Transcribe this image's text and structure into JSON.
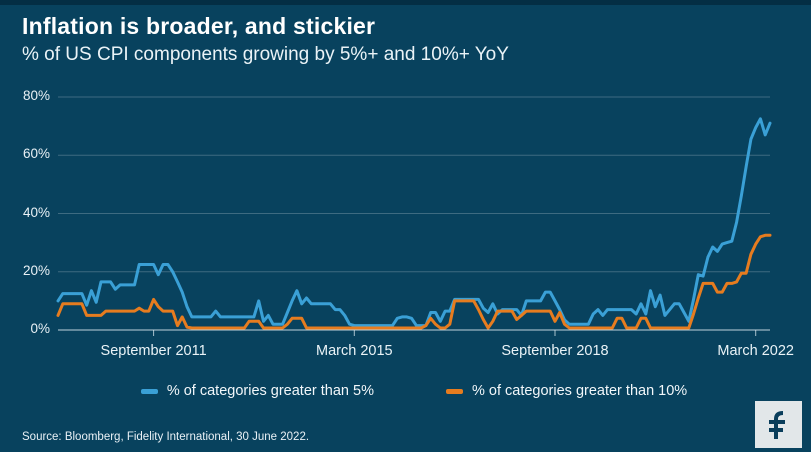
{
  "header": {
    "title": "Inflation is broader, and stickier",
    "subtitle": "% of US CPI components growing by 5%+ and 10%+ YoY"
  },
  "footer": {
    "source": "Source: Bloomberg, Fidelity International, 30 June 2022.",
    "logo": "fidelity-f-logo"
  },
  "colors": {
    "background": "#08425e",
    "series_5pct": "#3aa0d6",
    "series_10pct": "#e67c1f",
    "gridline": "rgba(255,255,255,0.22)",
    "text": "#ffffff",
    "logo_background": "#e2e7e9",
    "logo_glyph": "#0a3e5b"
  },
  "chart_data": {
    "type": "line",
    "title": "Inflation is broader, and stickier",
    "subtitle": "% of US CPI components growing by 5%+ and 10%+ YoY",
    "x_unit": "month",
    "x_start": "2010-01",
    "x_end": "2022-06",
    "ylim": [
      0,
      80
    ],
    "yticks": [
      0,
      20,
      40,
      60,
      80
    ],
    "ytick_labels": [
      "0%",
      "20%",
      "40%",
      "60%",
      "80%"
    ],
    "grid": "horizontal",
    "legend_position": "bottom",
    "xticks": [
      {
        "label": "September 2011",
        "index": 20
      },
      {
        "label": "March 2015",
        "index": 62
      },
      {
        "label": "September 2018",
        "index": 104
      },
      {
        "label": "March 2022",
        "index": 146
      }
    ],
    "series": [
      {
        "name": "% of categories greater than 5%",
        "color": "#3aa0d6",
        "values": [
          10,
          12.5,
          12.5,
          12.5,
          12.5,
          12.5,
          8.5,
          13.5,
          9.5,
          16.5,
          16.5,
          16.5,
          14,
          15.5,
          15.5,
          15.5,
          15.5,
          22.5,
          22.5,
          22.5,
          22.5,
          19,
          22.5,
          22.5,
          20,
          16.5,
          13,
          8,
          4.5,
          4.5,
          4.5,
          4.5,
          4.5,
          6.5,
          4.5,
          4.5,
          4.5,
          4.5,
          4.5,
          4.5,
          4.5,
          4.5,
          10,
          3,
          5,
          2,
          2,
          2,
          6,
          10,
          13.5,
          9,
          11,
          9,
          9,
          9,
          9,
          9,
          7,
          7,
          5,
          2,
          1.5,
          1.5,
          1.5,
          1.5,
          1.5,
          1.5,
          1.5,
          1.5,
          1.5,
          4,
          4.5,
          4.5,
          4,
          1.5,
          1.5,
          1.5,
          6,
          6,
          3,
          6.5,
          6.5,
          10.5,
          10.5,
          10.5,
          10.5,
          10.5,
          10.5,
          7.5,
          6,
          9,
          5.5,
          7,
          7,
          7,
          7,
          5,
          10,
          10,
          10,
          10,
          13,
          13,
          10,
          7,
          3.5,
          2,
          2,
          2,
          2,
          2,
          5.5,
          7,
          5,
          7,
          7,
          7,
          7,
          7,
          7,
          5.5,
          9,
          5.5,
          13.5,
          8,
          12,
          5,
          7,
          9,
          9,
          6,
          3,
          10.5,
          19,
          18.5,
          25,
          28.5,
          27,
          29.5,
          30,
          30.5,
          37,
          46,
          56,
          65.5,
          69.5,
          72.5,
          67,
          71
        ]
      },
      {
        "name": "% of categories greater than 10%",
        "color": "#e67c1f",
        "values": [
          5,
          9,
          9,
          9,
          9,
          9,
          5,
          5,
          5,
          5,
          6.5,
          6.5,
          6.5,
          6.5,
          6.5,
          6.5,
          6.5,
          7.5,
          6.5,
          6.5,
          10.5,
          8,
          6.5,
          6.5,
          6.5,
          1.5,
          4.5,
          1,
          0.7,
          0.7,
          0.7,
          0.7,
          0.7,
          0.7,
          0.7,
          0.7,
          0.7,
          0.7,
          0.7,
          0.7,
          3,
          3,
          3,
          0.7,
          0.7,
          0.7,
          0.7,
          0.7,
          2,
          4,
          4,
          4,
          0.7,
          0.7,
          0.7,
          0.7,
          0.7,
          0.7,
          0.7,
          0.7,
          0.7,
          0.7,
          0.7,
          0.7,
          0.7,
          0.7,
          0.7,
          0.7,
          0.7,
          0.7,
          0.7,
          0.7,
          0.7,
          0.7,
          0.7,
          0.7,
          0.7,
          1.5,
          4,
          2,
          0.7,
          0.7,
          2,
          10,
          10,
          10,
          10,
          10,
          7,
          3.6,
          0.7,
          3,
          6.5,
          6.5,
          6.5,
          6.5,
          3.6,
          5,
          6.5,
          6.5,
          6.5,
          6.5,
          6.5,
          6.5,
          3,
          6,
          2,
          0.7,
          0.7,
          0.7,
          0.7,
          0.7,
          0.7,
          0.7,
          0.7,
          0.7,
          0.7,
          4,
          4,
          0.7,
          0.7,
          0.7,
          4,
          4,
          0.7,
          0.7,
          0.7,
          0.7,
          0.7,
          0.7,
          0.7,
          0.7,
          0.7,
          5.5,
          11,
          16,
          16,
          16,
          13,
          13,
          16,
          16,
          16.5,
          19.5,
          19.5,
          26,
          29.5,
          32,
          32.5,
          32.5
        ]
      }
    ]
  },
  "legend": {
    "items": [
      {
        "label": "% of categories greater than 5%"
      },
      {
        "label": "% of categories greater than 10%"
      }
    ]
  }
}
